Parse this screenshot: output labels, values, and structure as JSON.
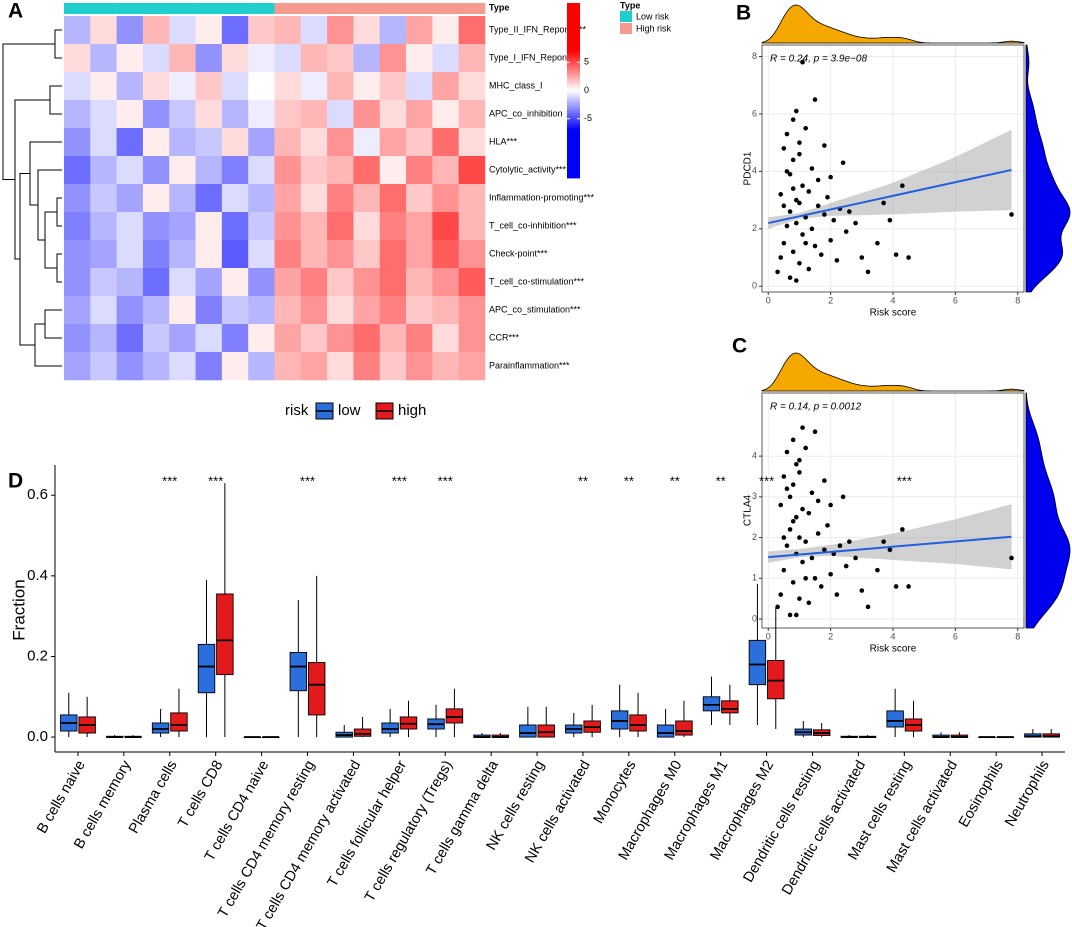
{
  "chart_data": [
    {
      "type": "heatmap",
      "label": "A",
      "annotation_label": "Type",
      "legend_title": "Type",
      "groups": [
        {
          "name": "Low risk",
          "color": "#1fcfcf"
        },
        {
          "name": "High risk",
          "color": "#f59a8e"
        }
      ],
      "column_group": [
        0,
        0,
        0,
        0,
        0,
        0,
        0,
        0,
        1,
        1,
        1,
        1,
        1,
        1,
        1,
        1
      ],
      "rows": [
        "Type_II_IFN_Reponse**",
        "Type_I_IFN_Reponse*",
        "MHC_class_I",
        "APC_co_inhibition",
        "HLA***",
        "Cytolytic_activity***",
        "Inflammation-promoting***",
        "T_cell_co-inhibition***",
        "Check-point***",
        "T_cell_co-stimulation***",
        "APC_co_stimulation***",
        "CCR***",
        "Parainflammation***"
      ],
      "values": [
        [
          -2,
          1,
          -3,
          2,
          -1,
          0.5,
          -4,
          1.5,
          2,
          -1,
          3,
          1,
          -2,
          2.5,
          0.5,
          4
        ],
        [
          1,
          -2,
          0.5,
          -1,
          2,
          -3,
          1,
          -0.5,
          -1,
          2,
          1.5,
          -2,
          3,
          0.5,
          -1,
          2
        ],
        [
          -1,
          0.5,
          -2,
          1,
          -0.5,
          1.5,
          -1,
          0,
          1,
          -0.5,
          2,
          0.5,
          1.5,
          -1,
          2.5,
          1
        ],
        [
          -2,
          -1,
          0.5,
          -3,
          -1.5,
          1,
          -2,
          -0.5,
          1.5,
          2,
          -1,
          3,
          1,
          2.5,
          0.5,
          2
        ],
        [
          -3,
          -1,
          -4,
          0.5,
          -2,
          -1.5,
          1,
          -2.5,
          2,
          1,
          3,
          -0.5,
          2.5,
          1.5,
          4,
          1
        ],
        [
          -4,
          -2,
          -1,
          -3,
          0.5,
          -2,
          -3.5,
          -1,
          3,
          1.5,
          2,
          4,
          0.5,
          3.5,
          2,
          5
        ],
        [
          -3,
          -1.5,
          -2.5,
          0.5,
          -2,
          -4,
          -1,
          -2,
          2.5,
          1,
          3.5,
          2,
          4,
          1.5,
          3,
          2
        ],
        [
          -3.5,
          -2,
          -1,
          -3,
          -2.5,
          0.5,
          -4,
          -1.5,
          3,
          2,
          4,
          1,
          3.5,
          2.5,
          5,
          2
        ],
        [
          -3,
          -2.5,
          -1,
          -3.5,
          -2,
          0.5,
          -4.5,
          -1,
          3.5,
          2,
          3,
          1.5,
          4,
          2.5,
          4.5,
          3
        ],
        [
          -3,
          -1.5,
          -2,
          -4,
          -1,
          -2.5,
          0.5,
          -3,
          2.5,
          3.5,
          1.5,
          3,
          4,
          2,
          3,
          4.5
        ],
        [
          -2.5,
          -1,
          -3,
          -2,
          0.5,
          -3.5,
          -1.5,
          -2,
          2,
          3,
          1,
          2.5,
          3.5,
          1.5,
          2,
          3
        ],
        [
          -3,
          -2,
          -4,
          -1.5,
          -2.5,
          -1,
          -3.5,
          0.5,
          2.5,
          1.5,
          3,
          4,
          2,
          3.5,
          1,
          3
        ],
        [
          -2.5,
          -1.5,
          -3,
          -2,
          -1,
          -3.5,
          0.5,
          -2,
          2,
          2.5,
          1,
          3.5,
          1.5,
          3,
          2,
          2.5
        ]
      ],
      "color_lim": [
        -7,
        7
      ],
      "colors": [
        "#0000ff",
        "#ffffff",
        "#ff0000"
      ],
      "colorbar_lim": [
        -15.5,
        15.5
      ],
      "colorbar_ticks": [
        -5,
        0,
        5
      ]
    },
    {
      "type": "scatter",
      "label": "B",
      "xlabel": "Risk score",
      "ylabel": "PDCD1",
      "annotation": "R = 0.24, p = 3.9e−08",
      "xlim": [
        -0.2,
        8.2
      ],
      "xticks": [
        0,
        2,
        4,
        6,
        8
      ],
      "ylim": [
        -0.2,
        8.4
      ],
      "yticks": [
        0,
        2,
        4,
        6,
        8
      ],
      "grid": true,
      "color": "#000000",
      "fit_color": "#1f5fe0",
      "x_density_color": "#f5a800",
      "y_density_color": "#0000ee",
      "x": [
        0.3,
        0.4,
        0.5,
        0.5,
        0.6,
        0.6,
        0.7,
        0.7,
        0.7,
        0.8,
        0.8,
        0.8,
        0.9,
        0.9,
        0.9,
        1.0,
        1.0,
        1.0,
        1.1,
        1.1,
        1.2,
        1.2,
        1.3,
        1.3,
        1.4,
        1.4,
        1.5,
        1.5,
        1.6,
        1.6,
        1.7,
        1.8,
        1.8,
        1.9,
        2.0,
        2.0,
        2.1,
        2.2,
        2.3,
        2.4,
        2.5,
        2.6,
        2.8,
        3.0,
        3.2,
        3.5,
        3.7,
        3.9,
        4.1,
        4.3,
        4.5,
        7.8,
        0.4,
        0.6,
        0.8,
        1.0,
        1.2,
        0.5,
        0.9,
        1.1
      ],
      "y": [
        0.5,
        3.2,
        1.5,
        4.8,
        2.1,
        5.3,
        0.3,
        2.6,
        3.9,
        1.2,
        4.4,
        5.8,
        2.2,
        3.0,
        6.1,
        0.8,
        2.9,
        4.6,
        1.8,
        3.5,
        2.4,
        5.5,
        0.6,
        3.3,
        2.0,
        4.1,
        1.4,
        6.5,
        2.8,
        3.7,
        1.1,
        2.5,
        4.9,
        3.1,
        1.6,
        3.8,
        2.3,
        0.9,
        2.7,
        4.3,
        1.9,
        2.6,
        2.2,
        1.0,
        0.5,
        1.5,
        2.9,
        2.3,
        1.1,
        3.5,
        1.0,
        2.5,
        1.0,
        4.0,
        3.4,
        5.0,
        1.5,
        2.8,
        0.2,
        7.8
      ],
      "fit": {
        "x": [
          0,
          7.8
        ],
        "y": [
          2.2,
          4.05
        ]
      },
      "band": {
        "x": [
          0,
          1,
          2,
          4,
          6,
          7.8
        ],
        "lower": [
          2.0,
          2.35,
          2.45,
          2.5,
          2.6,
          2.65
        ],
        "upper": [
          2.4,
          2.55,
          2.9,
          3.6,
          4.5,
          5.45
        ]
      }
    },
    {
      "type": "scatter",
      "label": "C",
      "xlabel": "Risk score",
      "ylabel": "CTLA4",
      "annotation": "R = 0.14, p = 0.0012",
      "xlim": [
        -0.2,
        8.2
      ],
      "xticks": [
        0,
        2,
        4,
        6,
        8
      ],
      "ylim": [
        -0.22,
        5.55
      ],
      "yticks": [
        0,
        1,
        2,
        3,
        4
      ],
      "grid": true,
      "color": "#000000",
      "fit_color": "#1f5fe0",
      "x_density_color": "#f5a800",
      "y_density_color": "#0000ee",
      "x": [
        0.3,
        0.4,
        0.5,
        0.5,
        0.6,
        0.6,
        0.7,
        0.7,
        0.7,
        0.8,
        0.8,
        0.8,
        0.9,
        0.9,
        0.9,
        1.0,
        1.0,
        1.0,
        1.1,
        1.1,
        1.2,
        1.2,
        1.3,
        1.3,
        1.4,
        1.4,
        1.5,
        1.5,
        1.6,
        1.6,
        1.7,
        1.8,
        1.8,
        1.9,
        2.0,
        2.0,
        2.1,
        2.2,
        2.3,
        2.4,
        2.5,
        2.6,
        2.8,
        3.0,
        3.2,
        3.5,
        3.7,
        3.9,
        4.1,
        4.3,
        4.5,
        7.8,
        0.4,
        0.6,
        0.8,
        1.0,
        1.2,
        0.5,
        0.9,
        1.1
      ],
      "y": [
        0.3,
        2.8,
        1.2,
        3.5,
        1.8,
        4.1,
        0.1,
        2.2,
        3.0,
        0.9,
        3.3,
        4.4,
        1.6,
        2.5,
        3.8,
        0.5,
        2.0,
        3.6,
        1.4,
        2.7,
        1.9,
        4.2,
        0.4,
        2.6,
        1.5,
        3.1,
        1.0,
        4.6,
        2.1,
        2.9,
        0.8,
        1.7,
        3.4,
        2.3,
        1.1,
        2.8,
        1.6,
        0.6,
        1.8,
        3.0,
        1.3,
        1.9,
        1.5,
        0.7,
        0.3,
        1.2,
        1.9,
        1.7,
        0.8,
        2.2,
        0.8,
        1.5,
        0.6,
        3.2,
        2.4,
        3.9,
        1.0,
        2.0,
        0.1,
        4.7
      ],
      "fit": {
        "x": [
          0,
          7.8
        ],
        "y": [
          1.52,
          2.02
        ]
      },
      "band": {
        "x": [
          0,
          1,
          2,
          4,
          6,
          7.8
        ],
        "lower": [
          1.38,
          1.52,
          1.55,
          1.45,
          1.35,
          1.22
        ],
        "upper": [
          1.66,
          1.72,
          1.82,
          2.1,
          2.45,
          2.82
        ]
      }
    },
    {
      "type": "box",
      "label": "D",
      "ylabel": "Fraction",
      "legend_title": "risk",
      "ylim": [
        -0.037,
        0.675
      ],
      "yticks": [
        {
          "value": 0,
          "label": "0.0"
        },
        0.2,
        0.4,
        0.6
      ],
      "categories": [
        "B cells naive",
        "B cells memory",
        "Plasma cells",
        "T cells CD8",
        "T cells CD4 naive",
        "T cells CD4 memory resting",
        "T cells CD4 memory activated",
        "T cells follicular helper",
        "T cells regulatory (Tregs)",
        "T cells gamma delta",
        "NK cells resting",
        "NK cells activated",
        "Monocytes",
        "Macrophages M0",
        "Macrophages M1",
        "Macrophages M2",
        "Dendritic cells resting",
        "Dendritic cells activated",
        "Mast cells resting",
        "Mast cells activated",
        "Eosinophils",
        "Neutrophils"
      ],
      "significance": [
        null,
        null,
        "***",
        "***",
        null,
        "***",
        null,
        "***",
        "***",
        null,
        null,
        "**",
        "**",
        "**",
        "**",
        "***",
        null,
        null,
        "***",
        null,
        null,
        null
      ],
      "series": [
        {
          "name": "low",
          "color": "#2a6fdb",
          "whislo": [
            0,
            0,
            0,
            0,
            0,
            0,
            0,
            0,
            0,
            0,
            0,
            0,
            0,
            0,
            0.03,
            0.03,
            0,
            0,
            0,
            0,
            0,
            0
          ],
          "q1": [
            0.015,
            0,
            0.01,
            0.11,
            0,
            0.115,
            0,
            0.01,
            0.02,
            0,
            0,
            0.01,
            0.02,
            0,
            0.065,
            0.13,
            0.005,
            0,
            0.025,
            0,
            0,
            0
          ],
          "median": [
            0.035,
            0,
            0.02,
            0.175,
            0,
            0.175,
            0.005,
            0.02,
            0.032,
            0,
            0.01,
            0.02,
            0.04,
            0.01,
            0.08,
            0.18,
            0.012,
            0,
            0.04,
            0,
            0,
            0.002
          ],
          "q3": [
            0.055,
            0.002,
            0.035,
            0.23,
            0,
            0.21,
            0.012,
            0.035,
            0.045,
            0.005,
            0.03,
            0.03,
            0.065,
            0.03,
            0.1,
            0.24,
            0.02,
            0.002,
            0.065,
            0.005,
            0,
            0.008
          ],
          "whishi": [
            0.11,
            0.005,
            0.07,
            0.39,
            0,
            0.34,
            0.03,
            0.07,
            0.08,
            0.01,
            0.075,
            0.06,
            0.13,
            0.07,
            0.15,
            0.38,
            0.04,
            0.005,
            0.12,
            0.012,
            0.002,
            0.02
          ]
        },
        {
          "name": "high",
          "color": "#e31a1c",
          "whislo": [
            0,
            0,
            0,
            0,
            0,
            0,
            0,
            0,
            0,
            0,
            0,
            0,
            0,
            0,
            0.03,
            0.02,
            0,
            0,
            0,
            0,
            0,
            0
          ],
          "q1": [
            0.01,
            0,
            0.015,
            0.155,
            0,
            0.055,
            0.002,
            0.02,
            0.035,
            0,
            0,
            0.012,
            0.015,
            0.005,
            0.06,
            0.095,
            0.004,
            0,
            0.015,
            0,
            0,
            0
          ],
          "median": [
            0.03,
            0,
            0.03,
            0.24,
            0,
            0.13,
            0.008,
            0.033,
            0.05,
            0,
            0.012,
            0.025,
            0.03,
            0.015,
            0.07,
            0.14,
            0.01,
            0,
            0.03,
            0,
            0,
            0.002
          ],
          "q3": [
            0.05,
            0.002,
            0.06,
            0.355,
            0,
            0.185,
            0.02,
            0.05,
            0.07,
            0.005,
            0.03,
            0.04,
            0.055,
            0.04,
            0.09,
            0.19,
            0.018,
            0.002,
            0.045,
            0.005,
            0,
            0.008
          ],
          "whishi": [
            0.1,
            0.005,
            0.12,
            0.63,
            0,
            0.4,
            0.05,
            0.09,
            0.12,
            0.01,
            0.075,
            0.08,
            0.11,
            0.09,
            0.13,
            0.32,
            0.035,
            0.005,
            0.09,
            0.012,
            0.002,
            0.02
          ]
        }
      ]
    }
  ]
}
